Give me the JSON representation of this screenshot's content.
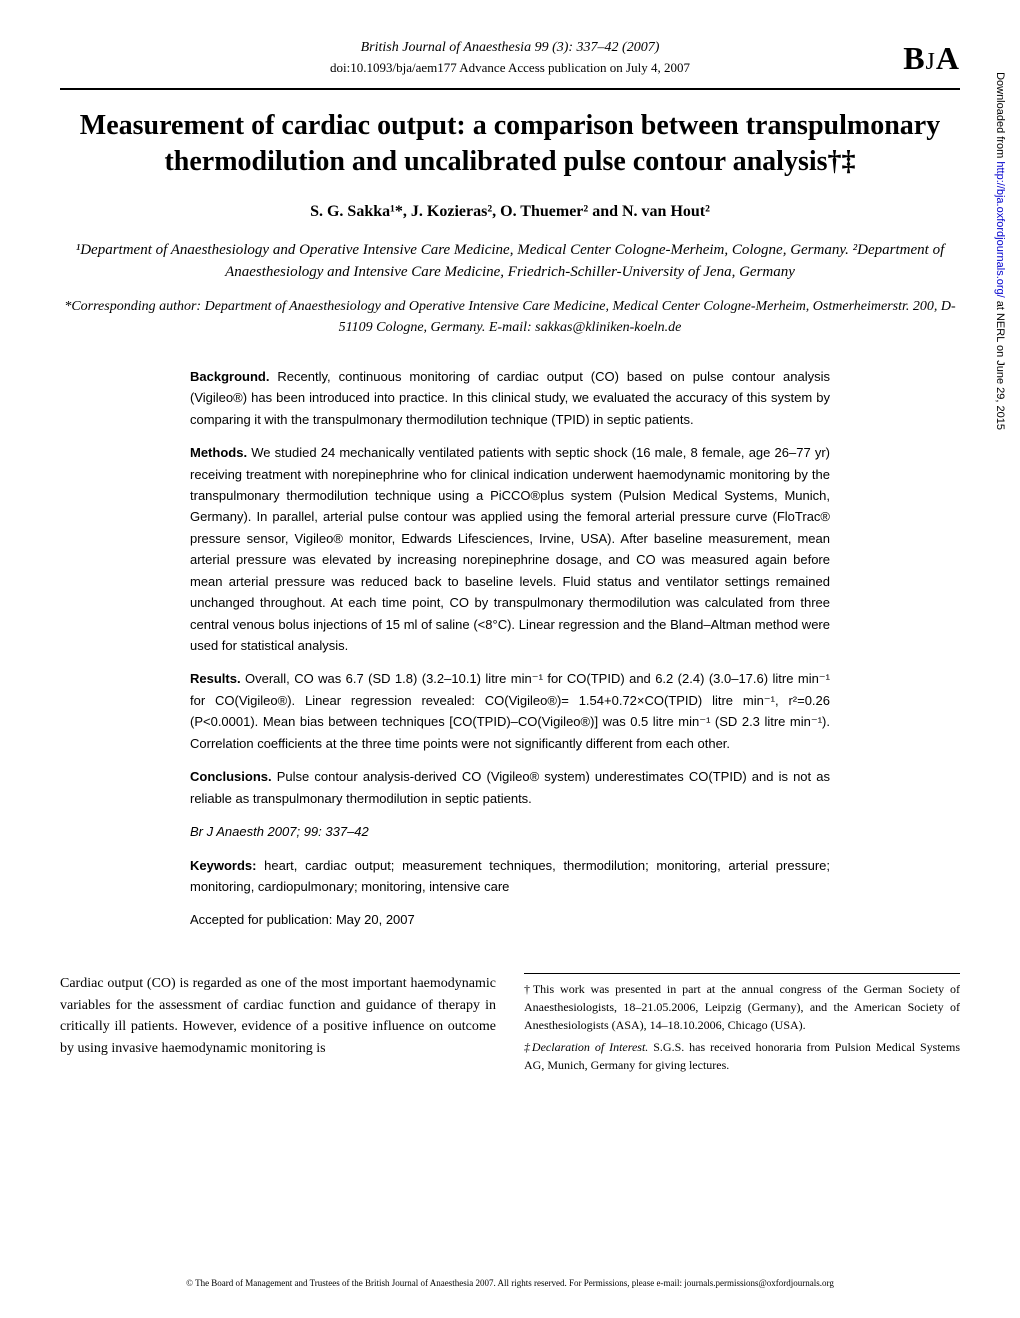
{
  "header": {
    "journal_meta": "British Journal of Anaesthesia 99 (3): 337–42 (2007)",
    "doi_line": "doi:10.1093/bja/aem177   Advance Access publication on July 4, 2007",
    "logo_text": "BJA"
  },
  "title": "Measurement of cardiac output: a comparison between transpulmonary thermodilution and uncalibrated pulse contour analysis†‡",
  "authors": "S. G. Sakka¹*, J. Kozieras², O. Thuemer² and N. van Hout²",
  "affiliations": "¹Department of Anaesthesiology and Operative Intensive Care Medicine, Medical Center Cologne-Merheim, Cologne, Germany. ²Department of Anaesthesiology and Intensive Care Medicine, Friedrich-Schiller-University of Jena, Germany",
  "corresponding": "*Corresponding author: Department of Anaesthesiology and Operative Intensive Care Medicine, Medical Center Cologne-Merheim, Ostmerheimerstr. 200, D-51109 Cologne, Germany. E-mail: sakkas@kliniken-koeln.de",
  "abstract": {
    "background_label": "Background.",
    "background": " Recently, continuous monitoring of cardiac output (CO) based on pulse contour analysis (Vigileo®) has been introduced into practice. In this clinical study, we evaluated the accuracy of this system by comparing it with the transpulmonary thermodilution technique (TPID) in septic patients.",
    "methods_label": "Methods.",
    "methods": " We studied 24 mechanically ventilated patients with septic shock (16 male, 8 female, age 26–77 yr) receiving treatment with norepinephrine who for clinical indication underwent haemodynamic monitoring by the transpulmonary thermodilution technique using a PiCCO®plus system (Pulsion Medical Systems, Munich, Germany). In parallel, arterial pulse contour was applied using the femoral arterial pressure curve (FloTrac® pressure sensor, Vigileo® monitor, Edwards Lifesciences, Irvine, USA). After baseline measurement, mean arterial pressure was elevated by increasing norepinephrine dosage, and CO was measured again before mean arterial pressure was reduced back to baseline levels. Fluid status and ventilator settings remained unchanged throughout. At each time point, CO by transpulmonary thermodilution was calculated from three central venous bolus injections of 15 ml of saline (<8°C). Linear regression and the Bland–Altman method were used for statistical analysis.",
    "results_label": "Results.",
    "results": " Overall, CO was 6.7 (SD 1.8) (3.2–10.1) litre min⁻¹ for CO(TPID) and 6.2 (2.4) (3.0–17.6) litre min⁻¹ for CO(Vigileo®). Linear regression revealed: CO(Vigileo®)= 1.54+0.72×CO(TPID) litre min⁻¹, r²=0.26 (P<0.0001). Mean bias between techniques [CO(TPID)–CO(Vigileo®)] was 0.5 litre min⁻¹ (SD 2.3 litre min⁻¹). Correlation coefficients at the three time points were not significantly different from each other.",
    "conclusions_label": "Conclusions.",
    "conclusions": " Pulse contour analysis-derived CO (Vigileo® system) underestimates CO(TPID) and is not as reliable as transpulmonary thermodilution in septic patients.",
    "citation": "Br J Anaesth 2007; 99: 337–42",
    "keywords_label": "Keywords:",
    "keywords": " heart, cardiac output; measurement techniques, thermodilution; monitoring, arterial pressure; monitoring, cardiopulmonary; monitoring, intensive care",
    "accepted": "Accepted for publication: May 20, 2007"
  },
  "body": {
    "intro": "Cardiac output (CO) is regarded as one of the most important haemodynamic variables for the assessment of cardiac function and guidance of therapy in critically ill patients. However, evidence of a positive influence on outcome by using invasive haemodynamic monitoring is",
    "footnote1": "†This work was presented in part at the annual congress of the German Society of Anaesthesiologists, 18–21.05.2006, Leipzig (Germany), and the American Society of Anesthesiologists (ASA), 14–18.10.2006, Chicago (USA).",
    "footnote2_label": "‡Declaration of Interest.",
    "footnote2": " S.G.S. has received honoraria from Pulsion Medical Systems AG, Munich, Germany for giving lectures."
  },
  "footer": "© The Board of Management and Trustees of the British Journal of Anaesthesia 2007. All rights reserved. For Permissions, please e-mail: journals.permissions@oxfordjournals.org",
  "side_note_prefix": "Downloaded from ",
  "side_note_link": "http://bja.oxfordjournals.org/",
  "side_note_suffix": " at NERL on June 29, 2015"
}
